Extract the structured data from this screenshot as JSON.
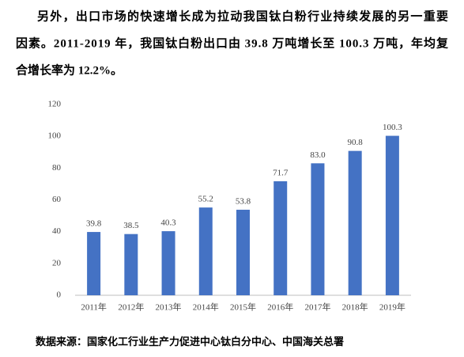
{
  "paragraph": [
    "另外，出口市场的快速增长成为拉动我国钛白粉行业持续发展的另一重要",
    "因素。2011-2019 年，我国钛白粉出口由 39.8 万吨增长至 100.3 万吨，年均复",
    "合增长率为 12.2%。"
  ],
  "chart_data": {
    "type": "bar",
    "categories": [
      "2011年",
      "2012年",
      "2013年",
      "2014年",
      "2015年",
      "2016年",
      "2017年",
      "2018年",
      "2019年"
    ],
    "values": [
      39.8,
      38.5,
      40.3,
      55.2,
      53.8,
      71.7,
      83.0,
      90.8,
      100.3
    ],
    "value_labels": [
      "39.8",
      "38.5",
      "40.3",
      "55.2",
      "53.8",
      "71.7",
      "83.0",
      "90.8",
      "100.3"
    ],
    "color": "#4472c4",
    "ylim": [
      0,
      120
    ],
    "yticks": [
      0,
      20,
      40,
      60,
      80,
      100,
      120
    ],
    "grid": false
  },
  "source": "数据来源：国家化工行业生产力促进中心钛白分中心、中国海关总署"
}
